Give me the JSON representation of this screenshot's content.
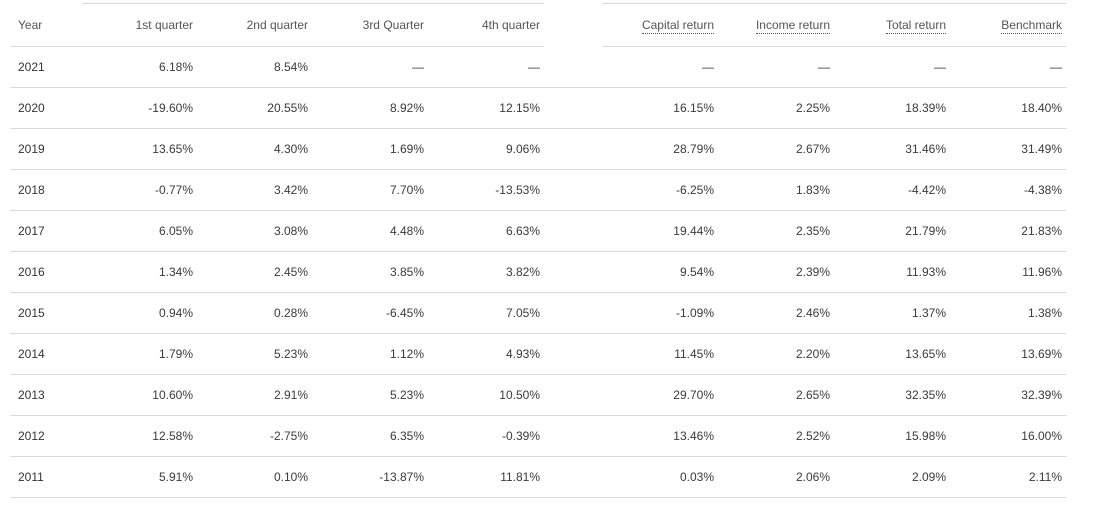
{
  "columns": {
    "year": "Year",
    "q1": "1st quarter",
    "q2": "2nd quarter",
    "q3": "3rd Quarter",
    "q4": "4th quarter",
    "capital": "Capital return",
    "income": "Income return",
    "total": "Total return",
    "benchmark": "Benchmark"
  },
  "rows": [
    {
      "year": "2021",
      "q1": "6.18%",
      "q2": "8.54%",
      "q3": "—",
      "q4": "—",
      "capital": "—",
      "income": "—",
      "total": "—",
      "benchmark": "—"
    },
    {
      "year": "2020",
      "q1": "-19.60%",
      "q2": "20.55%",
      "q3": "8.92%",
      "q4": "12.15%",
      "capital": "16.15%",
      "income": "2.25%",
      "total": "18.39%",
      "benchmark": "18.40%"
    },
    {
      "year": "2019",
      "q1": "13.65%",
      "q2": "4.30%",
      "q3": "1.69%",
      "q4": "9.06%",
      "capital": "28.79%",
      "income": "2.67%",
      "total": "31.46%",
      "benchmark": "31.49%"
    },
    {
      "year": "2018",
      "q1": "-0.77%",
      "q2": "3.42%",
      "q3": "7.70%",
      "q4": "-13.53%",
      "capital": "-6.25%",
      "income": "1.83%",
      "total": "-4.42%",
      "benchmark": "-4.38%"
    },
    {
      "year": "2017",
      "q1": "6.05%",
      "q2": "3.08%",
      "q3": "4.48%",
      "q4": "6.63%",
      "capital": "19.44%",
      "income": "2.35%",
      "total": "21.79%",
      "benchmark": "21.83%"
    },
    {
      "year": "2016",
      "q1": "1.34%",
      "q2": "2.45%",
      "q3": "3.85%",
      "q4": "3.82%",
      "capital": "9.54%",
      "income": "2.39%",
      "total": "11.93%",
      "benchmark": "11.96%"
    },
    {
      "year": "2015",
      "q1": "0.94%",
      "q2": "0.28%",
      "q3": "-6.45%",
      "q4": "7.05%",
      "capital": "-1.09%",
      "income": "2.46%",
      "total": "1.37%",
      "benchmark": "1.38%"
    },
    {
      "year": "2014",
      "q1": "1.79%",
      "q2": "5.23%",
      "q3": "1.12%",
      "q4": "4.93%",
      "capital": "11.45%",
      "income": "2.20%",
      "total": "13.65%",
      "benchmark": "13.69%"
    },
    {
      "year": "2013",
      "q1": "10.60%",
      "q2": "2.91%",
      "q3": "5.23%",
      "q4": "10.50%",
      "capital": "29.70%",
      "income": "2.65%",
      "total": "32.35%",
      "benchmark": "32.39%"
    },
    {
      "year": "2012",
      "q1": "12.58%",
      "q2": "-2.75%",
      "q3": "6.35%",
      "q4": "-0.39%",
      "capital": "13.46%",
      "income": "2.52%",
      "total": "15.98%",
      "benchmark": "16.00%"
    },
    {
      "year": "2011",
      "q1": "5.91%",
      "q2": "0.10%",
      "q3": "-13.87%",
      "q4": "11.81%",
      "capital": "0.03%",
      "income": "2.06%",
      "total": "2.09%",
      "benchmark": "2.11%"
    }
  ]
}
